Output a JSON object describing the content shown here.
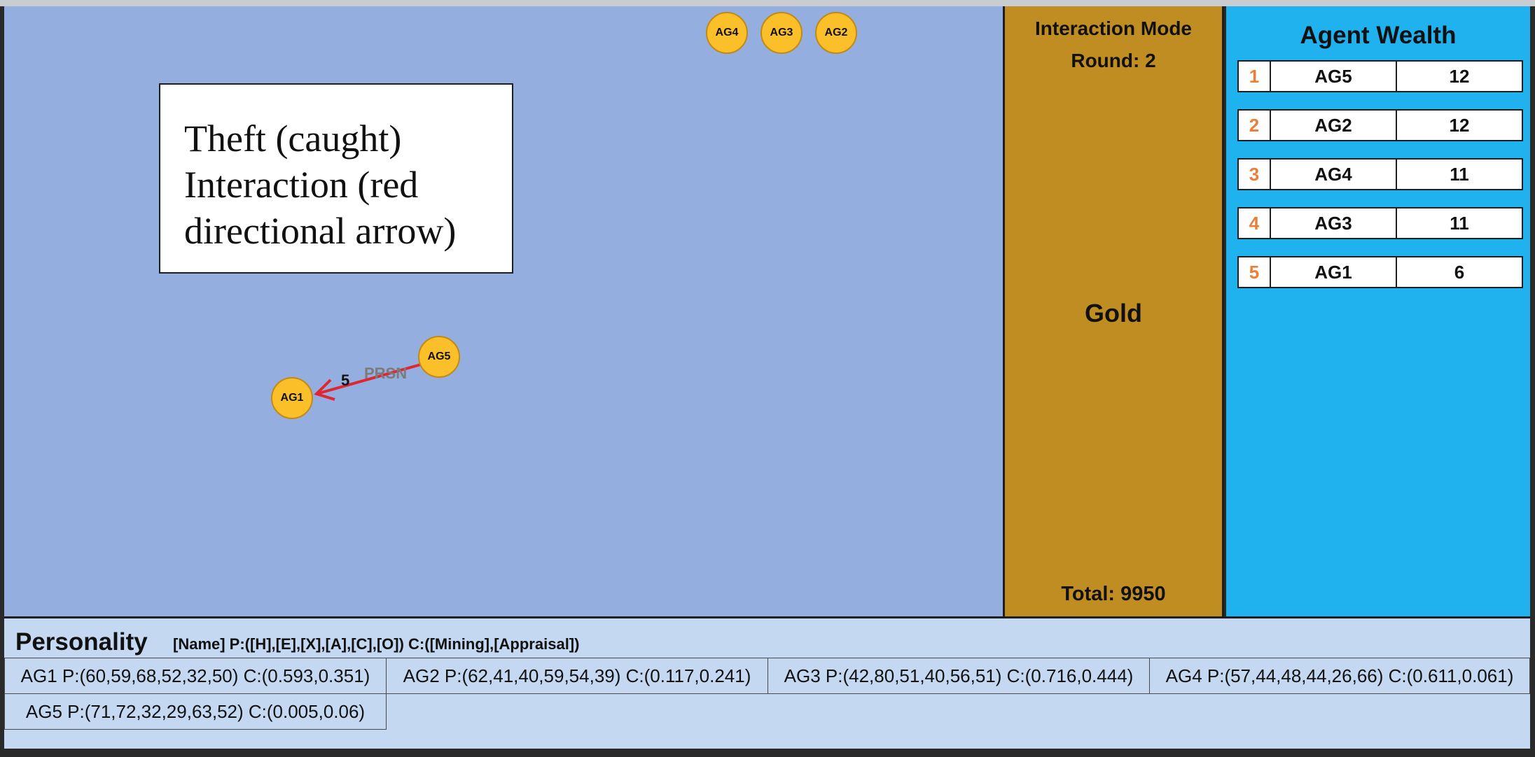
{
  "annotation": {
    "lines": [
      "Theft (caught)",
      "Interaction (red",
      "directional arrow)"
    ]
  },
  "stage": {
    "agents": [
      "AG4",
      "AG3",
      "AG2",
      "AG5",
      "AG1"
    ],
    "edge": {
      "amount": "5",
      "type": "PRSN",
      "color": "#e0262f"
    }
  },
  "gold_panel": {
    "mode": "Interaction Mode",
    "round": "Round: 2",
    "resource": "Gold",
    "total": "Total: 9950"
  },
  "wealth": {
    "title": "Agent Wealth",
    "rows": [
      {
        "rank": "1",
        "name": "AG5",
        "value": "12"
      },
      {
        "rank": "2",
        "name": "AG2",
        "value": "12"
      },
      {
        "rank": "3",
        "name": "AG4",
        "value": "11"
      },
      {
        "rank": "4",
        "name": "AG3",
        "value": "11"
      },
      {
        "rank": "5",
        "name": "AG1",
        "value": "6"
      }
    ]
  },
  "personality": {
    "title": "Personality",
    "legend": "[Name] P:([H],[E],[X],[A],[C],[O]) C:([Mining],[Appraisal])",
    "cells": [
      "AG1 P:(60,59,68,52,32,50) C:(0.593,0.351)",
      "AG2 P:(62,41,40,59,54,39) C:(0.117,0.241)",
      "AG3 P:(42,80,51,40,56,51) C:(0.716,0.444)",
      "AG4 P:(57,44,48,44,26,66) C:(0.611,0.061)",
      "AG5 P:(71,72,32,29,63,52) C:(0.005,0.06)"
    ]
  },
  "colors": {
    "stage": "#94aedf",
    "gold_panel": "#bf8d22",
    "wealth_panel": "#20b2ee",
    "agent_node": "#fbbf2a",
    "rank_text": "#e8803a"
  }
}
